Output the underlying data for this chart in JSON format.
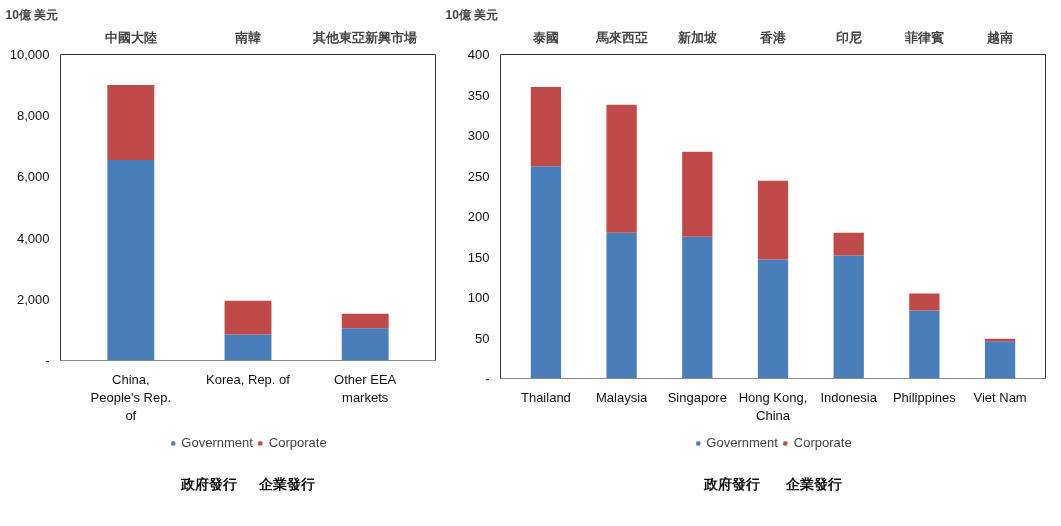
{
  "chart_data": [
    {
      "type": "bar",
      "stacked": true,
      "ylabel": "10億 美元",
      "categories": [
        "China, People's Rep. of",
        "Korea, Rep. of",
        "Other EEA markets"
      ],
      "series": [
        {
          "name": "Government",
          "color": "#4a7ebb",
          "values": [
            6550,
            850,
            1050
          ]
        },
        {
          "name": "Corporate",
          "color": "#be4b48",
          "values": [
            2450,
            1100,
            480
          ]
        }
      ],
      "ylim": [
        0,
        10000
      ],
      "yticks": [
        {
          "value": 0,
          "label": "-"
        },
        {
          "value": 2000,
          "label": "2,000"
        },
        {
          "value": 4000,
          "label": "4,000"
        },
        {
          "value": 6000,
          "label": "6,000"
        },
        {
          "value": 8000,
          "label": "8,000"
        },
        {
          "value": 10000,
          "label": "10,000"
        }
      ],
      "legend": "bottom",
      "annotations": [
        "中國大陸",
        "南韓",
        "其他東亞新興市場",
        "政府發行",
        "企業發行"
      ]
    },
    {
      "type": "bar",
      "stacked": true,
      "ylabel": "10億 美元",
      "categories": [
        "Thailand",
        "Malaysia",
        "Singapore",
        "Hong Kong, China",
        "Indonesia",
        "Philippines",
        "Viet Nam"
      ],
      "series": [
        {
          "name": "Government",
          "color": "#4a7ebb",
          "values": [
            262,
            180,
            175,
            147,
            152,
            84,
            46
          ]
        },
        {
          "name": "Corporate",
          "color": "#be4b48",
          "values": [
            98,
            158,
            105,
            97,
            28,
            21,
            3
          ]
        }
      ],
      "ylim": [
        0,
        400
      ],
      "yticks": [
        {
          "value": 0,
          "label": "-"
        },
        50,
        100,
        150,
        200,
        250,
        300,
        350,
        400
      ],
      "legend": "bottom",
      "annotations": [
        "泰國",
        "馬來西亞",
        "新加坡",
        "香港",
        "印尼",
        "菲律賓",
        "越南",
        "政府發行",
        "企業發行"
      ]
    }
  ]
}
